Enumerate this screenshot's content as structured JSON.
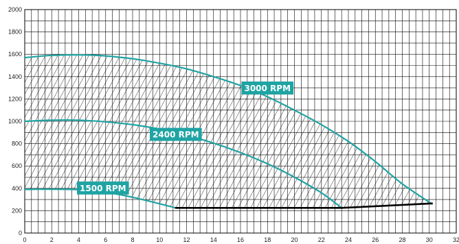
{
  "chart_data": {
    "type": "line",
    "title": "",
    "xlabel": "",
    "ylabel": "",
    "xlim": [
      0,
      32
    ],
    "ylim": [
      0,
      2000
    ],
    "x_ticks": [
      0,
      2,
      4,
      6,
      8,
      10,
      12,
      14,
      16,
      18,
      20,
      22,
      24,
      26,
      28,
      30,
      32
    ],
    "y_ticks": [
      0,
      200,
      400,
      600,
      800,
      1000,
      1200,
      1400,
      1600,
      1800,
      2000
    ],
    "x_minor_step": 0.5,
    "y_minor_step": 100,
    "grid": true,
    "operating_area": "hatched",
    "colors": {
      "curves": "#1fa3a3",
      "label_bg": "#1fa3a3",
      "label_text": "#ffffff",
      "boundary": "#000000",
      "grid": "#000000"
    },
    "series": [
      {
        "name": "3000 RPM",
        "x": [
          0,
          2,
          4,
          6,
          8,
          10,
          12,
          14,
          16,
          18,
          20,
          22,
          24,
          26,
          28,
          30.2
        ],
        "y": [
          1570,
          1590,
          1595,
          1585,
          1560,
          1520,
          1470,
          1400,
          1320,
          1220,
          1100,
          970,
          820,
          640,
          440,
          260
        ]
      },
      {
        "name": "2400 RPM",
        "x": [
          0,
          2,
          4,
          6,
          8,
          10,
          12,
          14,
          16,
          18,
          20,
          22,
          23.5
        ],
        "y": [
          1000,
          1010,
          1010,
          995,
          970,
          930,
          875,
          805,
          720,
          620,
          500,
          360,
          225
        ]
      },
      {
        "name": "1500 RPM",
        "x": [
          0,
          2,
          4,
          6,
          8,
          10,
          11.2
        ],
        "y": [
          390,
          392,
          388,
          365,
          320,
          262,
          225
        ]
      },
      {
        "name": "",
        "x": [
          11.2,
          23.5,
          30.2
        ],
        "y": [
          225,
          225,
          265
        ]
      }
    ],
    "annotations": [
      {
        "text": "3000 RPM",
        "series": "3000 RPM",
        "x": 18,
        "y": 1295
      },
      {
        "text": "2400 RPM",
        "series": "2400 RPM",
        "x": 11.2,
        "y": 880
      },
      {
        "text": "1500 RPM",
        "series": "1500 RPM",
        "x": 5.8,
        "y": 400
      }
    ]
  }
}
